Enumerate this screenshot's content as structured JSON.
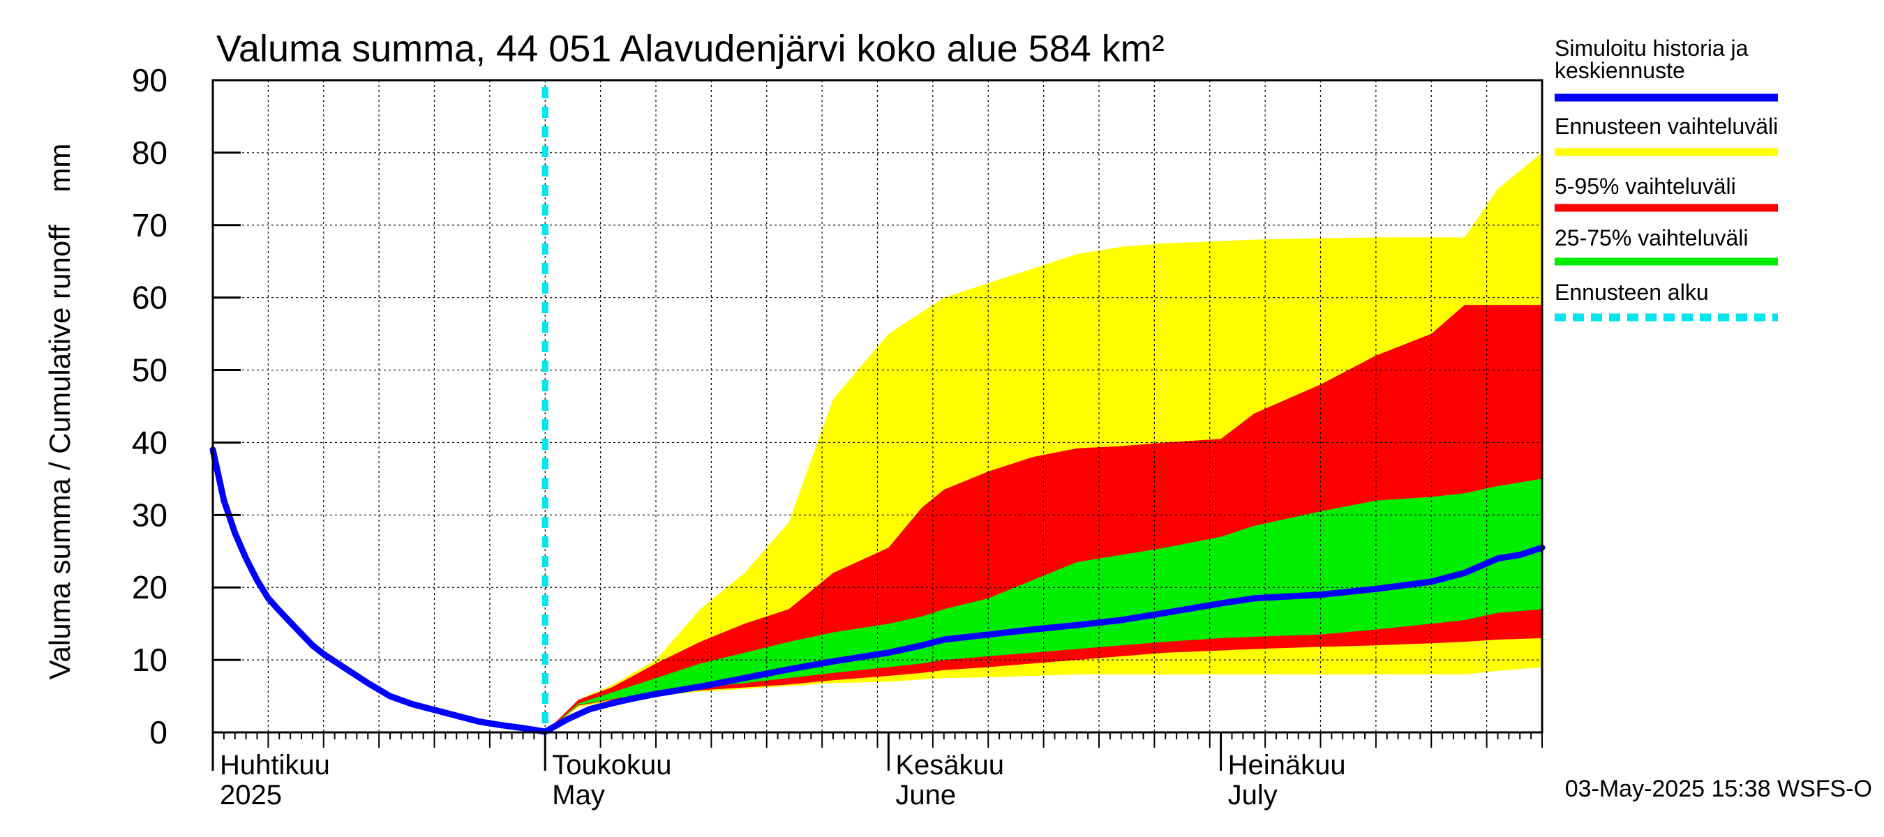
{
  "chart_data": {
    "type": "area",
    "title": "Valuma summa, 44 051 Alavudenjärvi koko alue 584 km²",
    "ylabel": "Valuma summa / Cumulative runoff    mm",
    "ylim": [
      0,
      90
    ],
    "yticks": [
      0,
      10,
      20,
      30,
      40,
      50,
      60,
      70,
      80,
      90
    ],
    "x_range_days": [
      0,
      120
    ],
    "month_labels": [
      {
        "day": 0,
        "line1": "Huhtikuu",
        "line2": "2025"
      },
      {
        "day": 30,
        "line1": "Toukokuu",
        "line2": "May"
      },
      {
        "day": 61,
        "line1": "Kesäkuu",
        "line2": "June"
      },
      {
        "day": 91,
        "line1": "Heinäkuu",
        "line2": "July"
      }
    ],
    "forecast_start_day": 30,
    "legend": [
      {
        "label_lines": [
          "Simuloitu historia ja",
          "keskiennuste"
        ],
        "color": "#0000ff",
        "style": "solid"
      },
      {
        "label_lines": [
          "Ennusteen vaihteluväli"
        ],
        "color": "#ffff00",
        "style": "solid"
      },
      {
        "label_lines": [
          "5-95% vaihteluväli"
        ],
        "color": "#ff0000",
        "style": "solid"
      },
      {
        "label_lines": [
          "25-75% vaihteluväli"
        ],
        "color": "#00ee00",
        "style": "solid"
      },
      {
        "label_lines": [
          "Ennusteen alku"
        ],
        "color": "#00e5ee",
        "style": "dashed"
      }
    ],
    "footer": "03-May-2025 15:38 WSFS-O",
    "days": [
      30,
      33,
      36,
      40,
      44,
      48,
      52,
      56,
      61,
      64,
      66,
      70,
      74,
      78,
      82,
      86,
      91,
      94,
      100,
      105,
      110,
      113,
      116,
      120
    ],
    "band_full": {
      "lower": [
        0,
        3.5,
        4.3,
        5.0,
        5.6,
        6.0,
        6.4,
        6.8,
        7.0,
        7.3,
        7.5,
        7.6,
        7.8,
        8.0,
        8.0,
        8.0,
        8.0,
        8.0,
        8.0,
        8.0,
        8.0,
        8.0,
        8.5,
        9.0
      ],
      "upper": [
        0,
        4.5,
        6.5,
        10.0,
        17.0,
        22.0,
        29.0,
        46.0,
        55.0,
        58.0,
        60.0,
        62.0,
        64.0,
        66.0,
        67.0,
        67.5,
        67.8,
        68.0,
        68.2,
        68.3,
        68.3,
        68.3,
        75.0,
        80.0
      ]
    },
    "band_5_95": {
      "lower": [
        0,
        3.7,
        4.5,
        5.3,
        5.8,
        6.2,
        6.6,
        7.2,
        7.8,
        8.2,
        8.6,
        9.0,
        9.5,
        10.0,
        10.5,
        11.0,
        11.3,
        11.5,
        11.8,
        12.0,
        12.3,
        12.5,
        12.8,
        13.0
      ],
      "upper": [
        0,
        4.5,
        6.2,
        9.5,
        12.5,
        15.0,
        17.0,
        22.0,
        25.5,
        31.0,
        33.5,
        36.0,
        38.0,
        39.2,
        39.5,
        40.0,
        40.5,
        44.0,
        48.0,
        52.0,
        55.0,
        59.0,
        59.0,
        59.0
      ]
    },
    "band_25_75": {
      "lower": [
        0,
        3.8,
        4.6,
        5.5,
        6.2,
        6.8,
        7.5,
        8.2,
        9.0,
        9.5,
        10.0,
        10.5,
        11.0,
        11.5,
        12.0,
        12.5,
        13.0,
        13.2,
        13.5,
        14.2,
        15.0,
        15.5,
        16.5,
        17.0
      ],
      "upper": [
        0,
        4.0,
        5.5,
        7.5,
        9.5,
        11.0,
        12.5,
        13.8,
        15.0,
        16.0,
        17.0,
        18.5,
        21.0,
        23.5,
        24.5,
        25.5,
        27.0,
        28.5,
        30.5,
        32.0,
        32.5,
        33.0,
        34.0,
        35.0
      ]
    },
    "median": {
      "days": [
        0,
        1,
        2,
        3,
        4,
        5,
        6,
        7,
        8,
        9,
        10,
        12,
        14,
        16,
        18,
        20,
        22,
        24,
        26,
        28,
        30,
        32,
        34,
        36,
        38,
        40,
        44,
        48,
        52,
        56,
        61,
        64,
        66,
        70,
        74,
        78,
        82,
        86,
        91,
        94,
        100,
        105,
        110,
        113,
        116,
        118,
        120
      ],
      "values": [
        39,
        32,
        27.5,
        24,
        21,
        18.5,
        16.8,
        15.2,
        13.6,
        12.0,
        10.8,
        8.8,
        6.8,
        5.0,
        3.9,
        3.1,
        2.3,
        1.5,
        1.0,
        0.6,
        0.1,
        1.8,
        3.2,
        4.0,
        4.7,
        5.3,
        6.3,
        7.5,
        8.7,
        9.8,
        11.0,
        12.0,
        12.8,
        13.5,
        14.2,
        14.8,
        15.5,
        16.5,
        17.8,
        18.5,
        19.0,
        19.8,
        20.8,
        22.0,
        24.0,
        24.5,
        25.5
      ]
    }
  }
}
